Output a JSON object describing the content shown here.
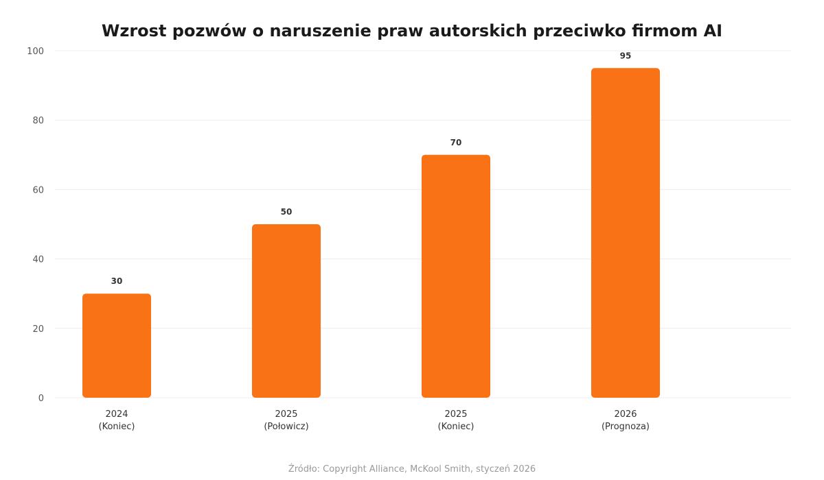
{
  "chart_data": {
    "type": "bar",
    "title": "Wzrost pozwów o naruszenie praw autorskich przeciwko firmom AI",
    "categories": [
      [
        "2024",
        "(Koniec)"
      ],
      [
        "2025",
        "(Połowicz)"
      ],
      [
        "2025",
        "(Koniec)"
      ],
      [
        "2026",
        "(Prognoza)"
      ]
    ],
    "values": [
      30,
      50,
      70,
      95
    ],
    "value_labels": [
      "30",
      "50",
      "70",
      "95"
    ],
    "xlabel": "",
    "ylabel": "",
    "ylim": [
      0,
      100
    ],
    "yticks": [
      0,
      20,
      40,
      60,
      80,
      100
    ],
    "grid": true,
    "bar_color": "#f97316",
    "source": "Źródło: Copyright Alliance, McKool Smith, styczeń 2026"
  }
}
